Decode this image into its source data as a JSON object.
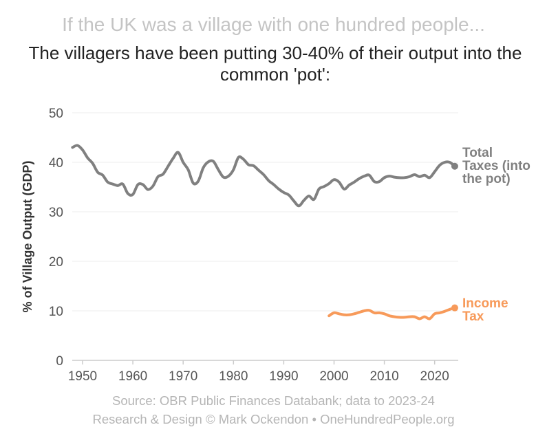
{
  "header": {
    "kicker": "If the UK was a village with one hundred people...",
    "title": "The villagers have been putting 30-40% of their output into the common 'pot':"
  },
  "footer": {
    "source": "Source: OBR Public Finances Databank; data to 2023-24",
    "credit": "Research & Design © Mark Ockendon • OneHundredPeople.org"
  },
  "chart_data": {
    "type": "line",
    "ylabel": "% of Village Output (GDP)",
    "xlabel": "",
    "ylim": [
      0,
      50
    ],
    "xlim": [
      1948,
      2024
    ],
    "yticks": [
      "0",
      "10",
      "20",
      "30",
      "40",
      "50"
    ],
    "xticks": [
      "1950",
      "1960",
      "1970",
      "1980",
      "1990",
      "2000",
      "2010",
      "2020"
    ],
    "grid": "horizontal",
    "legend": "direct labels at line ends (right)",
    "series": [
      {
        "name": "Total Taxes (into the pot)",
        "label_lines": [
          "Total",
          "Taxes (into",
          "the pot)"
        ],
        "color": "#808080",
        "x": [
          1948,
          1949,
          1950,
          1951,
          1952,
          1953,
          1954,
          1955,
          1956,
          1957,
          1958,
          1959,
          1960,
          1961,
          1962,
          1963,
          1964,
          1965,
          1966,
          1967,
          1968,
          1969,
          1970,
          1971,
          1972,
          1973,
          1974,
          1975,
          1976,
          1977,
          1978,
          1979,
          1980,
          1981,
          1982,
          1983,
          1984,
          1985,
          1986,
          1987,
          1988,
          1989,
          1990,
          1991,
          1992,
          1993,
          1994,
          1995,
          1996,
          1997,
          1998,
          1999,
          2000,
          2001,
          2002,
          2003,
          2004,
          2005,
          2006,
          2007,
          2008,
          2009,
          2010,
          2011,
          2012,
          2013,
          2014,
          2015,
          2016,
          2017,
          2018,
          2019,
          2020,
          2021,
          2022,
          2023,
          2024
        ],
        "values": [
          43.0,
          43.4,
          42.5,
          40.9,
          39.8,
          38.0,
          37.4,
          36.0,
          35.6,
          35.3,
          35.6,
          33.7,
          33.5,
          35.5,
          35.5,
          34.5,
          35.2,
          37.1,
          37.6,
          39.2,
          40.8,
          42.0,
          40.0,
          38.5,
          35.8,
          36.2,
          38.9,
          40.1,
          40.2,
          38.5,
          37.0,
          37.2,
          38.5,
          41.0,
          40.6,
          39.5,
          39.3,
          38.4,
          37.5,
          36.3,
          35.5,
          34.6,
          33.9,
          33.4,
          32.2,
          31.2,
          32.3,
          33.2,
          32.5,
          34.6,
          35.1,
          35.7,
          36.5,
          36.0,
          34.6,
          35.4,
          36.0,
          36.7,
          37.2,
          37.4,
          36.1,
          36.1,
          36.9,
          37.2,
          37.0,
          36.9,
          36.9,
          37.1,
          37.5,
          37.1,
          37.4,
          36.9,
          38.1,
          39.4,
          40.0,
          40.0,
          39.2
        ]
      },
      {
        "name": "Income Tax",
        "label_lines": [
          "Income",
          "Tax"
        ],
        "color": "#f79a5a",
        "x": [
          1999,
          2000,
          2001,
          2002,
          2003,
          2004,
          2005,
          2006,
          2007,
          2008,
          2009,
          2010,
          2011,
          2012,
          2013,
          2014,
          2015,
          2016,
          2017,
          2018,
          2019,
          2020,
          2021,
          2022,
          2023,
          2024
        ],
        "values": [
          9.0,
          9.6,
          9.4,
          9.2,
          9.2,
          9.4,
          9.7,
          10.0,
          10.1,
          9.6,
          9.6,
          9.4,
          9.0,
          8.8,
          8.7,
          8.7,
          8.8,
          8.8,
          8.4,
          8.8,
          8.4,
          9.4,
          9.6,
          9.9,
          10.3,
          10.6
        ]
      }
    ]
  }
}
